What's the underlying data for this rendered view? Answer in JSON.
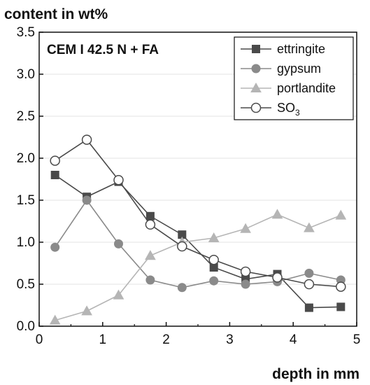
{
  "chart_data": {
    "type": "line",
    "ylabel": "content in wt%",
    "xlabel": "depth in mm",
    "annotation": "CEM I 42.5 N + FA",
    "xlim": [
      0,
      5
    ],
    "ylim": [
      0,
      3.5
    ],
    "xticks": [
      0,
      1,
      2,
      3,
      4,
      5
    ],
    "yticks": [
      0.0,
      0.5,
      1.0,
      1.5,
      2.0,
      2.5,
      3.0,
      3.5
    ],
    "ytick_labels": [
      "0.0",
      "0.5",
      "1.0",
      "1.5",
      "2.0",
      "2.5",
      "3.0",
      "3.5"
    ],
    "grid": "horizontal",
    "legend_position": "top-right",
    "series": [
      {
        "name": "ettringite",
        "marker": "square-filled",
        "color": "#4a4a4a",
        "x": [
          0.25,
          0.75,
          1.25,
          1.75,
          2.25,
          2.75,
          3.25,
          3.75,
          4.25,
          4.75
        ],
        "y": [
          1.8,
          1.54,
          1.72,
          1.31,
          1.09,
          0.7,
          0.56,
          0.62,
          0.22,
          0.23
        ]
      },
      {
        "name": "gypsum",
        "marker": "circle-filled",
        "color": "#8a8a8a",
        "x": [
          0.25,
          0.75,
          1.25,
          1.75,
          2.25,
          2.75,
          3.25,
          3.75,
          4.25,
          4.75
        ],
        "y": [
          0.94,
          1.5,
          0.98,
          0.55,
          0.46,
          0.54,
          0.5,
          0.53,
          0.63,
          0.55
        ]
      },
      {
        "name": "portlandite",
        "marker": "triangle-filled",
        "color": "#b5b5b5",
        "x": [
          0.25,
          0.75,
          1.25,
          1.75,
          2.25,
          2.75,
          3.25,
          3.75,
          4.25,
          4.75
        ],
        "y": [
          0.07,
          0.18,
          0.37,
          0.84,
          1.0,
          1.05,
          1.16,
          1.33,
          1.17,
          1.32
        ]
      },
      {
        "name": "SO3",
        "marker": "circle-open",
        "color": "#4a4a4a",
        "x": [
          0.25,
          0.75,
          1.25,
          1.75,
          2.25,
          2.75,
          3.25,
          3.75,
          4.25,
          4.75
        ],
        "y": [
          1.97,
          2.22,
          1.74,
          1.21,
          0.95,
          0.79,
          0.65,
          0.58,
          0.5,
          0.47
        ]
      }
    ]
  }
}
